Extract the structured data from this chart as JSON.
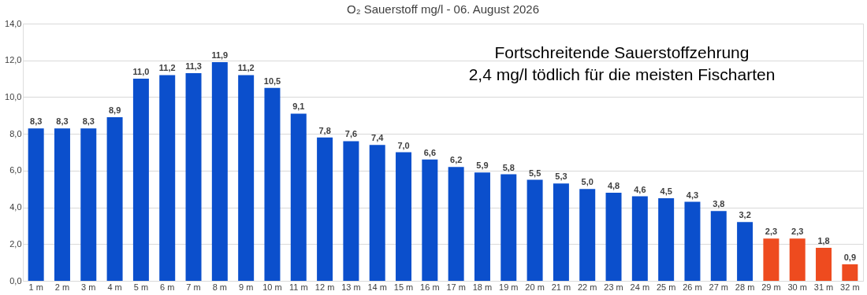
{
  "chart_data": {
    "type": "bar",
    "title": "O₂ Sauerstoff  mg/l - 06. August 2026",
    "categories": [
      "1 m",
      "2 m",
      "3 m",
      "4 m",
      "5 m",
      "6 m",
      "7 m",
      "8 m",
      "9 m",
      "10 m",
      "11 m",
      "12 m",
      "13 m",
      "14 m",
      "15 m",
      "16 m",
      "17 m",
      "18 m",
      "19 m",
      "20 m",
      "21 m",
      "22 m",
      "23 m",
      "24 m",
      "25 m",
      "26 m",
      "27 m",
      "28 m",
      "29 m",
      "30 m",
      "31 m",
      "32 m"
    ],
    "values": [
      8.3,
      8.3,
      8.3,
      8.9,
      11.0,
      11.2,
      11.3,
      11.9,
      11.2,
      10.5,
      9.1,
      7.8,
      7.6,
      7.4,
      7.0,
      6.6,
      6.2,
      5.9,
      5.8,
      5.5,
      5.3,
      5.0,
      4.8,
      4.6,
      4.5,
      4.3,
      3.8,
      3.2,
      2.3,
      2.3,
      1.8,
      0.9
    ],
    "value_labels": [
      "8,3",
      "8,3",
      "8,3",
      "8,9",
      "11,0",
      "11,2",
      "11,3",
      "11,9",
      "11,2",
      "10,5",
      "9,1",
      "7,8",
      "7,6",
      "7,4",
      "7,0",
      "6,6",
      "6,2",
      "5,9",
      "5,8",
      "5,5",
      "5,3",
      "5,0",
      "4,8",
      "4,6",
      "4,5",
      "4,3",
      "3,8",
      "3,2",
      "2,3",
      "2,3",
      "1,8",
      "0,9"
    ],
    "colors": [
      "#0b4fcc",
      "#0b4fcc",
      "#0b4fcc",
      "#0b4fcc",
      "#0b4fcc",
      "#0b4fcc",
      "#0b4fcc",
      "#0b4fcc",
      "#0b4fcc",
      "#0b4fcc",
      "#0b4fcc",
      "#0b4fcc",
      "#0b4fcc",
      "#0b4fcc",
      "#0b4fcc",
      "#0b4fcc",
      "#0b4fcc",
      "#0b4fcc",
      "#0b4fcc",
      "#0b4fcc",
      "#0b4fcc",
      "#0b4fcc",
      "#0b4fcc",
      "#0b4fcc",
      "#0b4fcc",
      "#0b4fcc",
      "#0b4fcc",
      "#0b4fcc",
      "#ee4b1f",
      "#ee4b1f",
      "#ee4b1f",
      "#ee4b1f"
    ],
    "ylim": [
      0,
      14
    ],
    "yticks": [
      {
        "value": 0,
        "label": "0,0"
      },
      {
        "value": 2,
        "label": "2,0"
      },
      {
        "value": 4,
        "label": "4,0"
      },
      {
        "value": 6,
        "label": "6,0"
      },
      {
        "value": 8,
        "label": "8,0"
      },
      {
        "value": 10,
        "label": "10,0"
      },
      {
        "value": 12,
        "label": "12,0"
      },
      {
        "value": 14,
        "label": "14,0"
      }
    ],
    "grid": "y",
    "annotations": [
      "Fortschreitende Sauerstoffzehrung",
      "2,4 mg/l tödlich für die meisten Fischarten"
    ]
  }
}
